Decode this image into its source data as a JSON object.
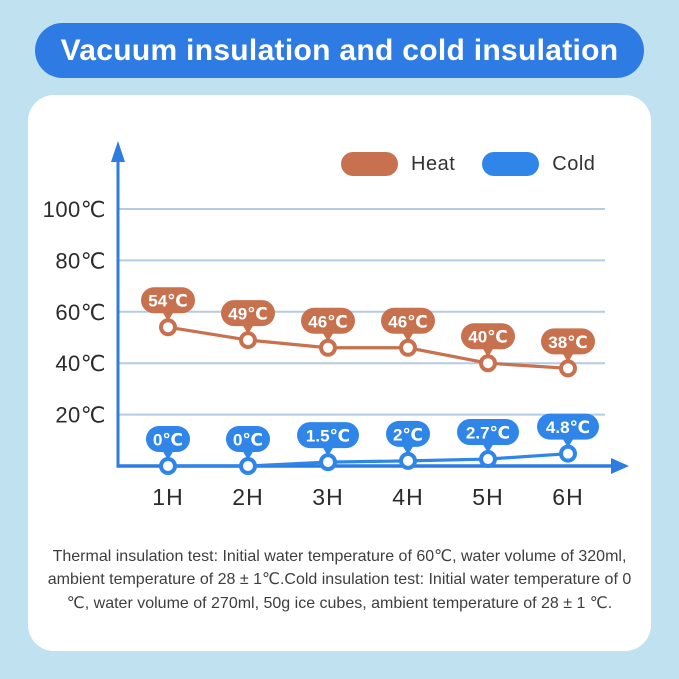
{
  "page": {
    "background": "#BFE1F0",
    "card_background": "#FFFFFF"
  },
  "header": {
    "title": "Vacuum insulation and cold insulation",
    "background": "#2E7BE3",
    "text_color": "#FFFFFF"
  },
  "legend": {
    "items": [
      {
        "label": "Heat",
        "color": "#C8714E"
      },
      {
        "label": "Cold",
        "color": "#2F86E8"
      }
    ]
  },
  "chart_data": {
    "type": "line",
    "categories": [
      "1H",
      "2H",
      "3H",
      "4H",
      "5H",
      "6H"
    ],
    "series": [
      {
        "name": "Heat",
        "color": "#C8714E",
        "values": [
          54,
          49,
          46,
          46,
          40,
          38
        ],
        "point_labels": [
          "54℃",
          "49℃",
          "46℃",
          "46℃",
          "40℃",
          "38℃"
        ]
      },
      {
        "name": "Cold",
        "color": "#2F86E8",
        "values": [
          0,
          0,
          1.5,
          2,
          2.7,
          4.8
        ],
        "point_labels": [
          "0℃",
          "0℃",
          "1.5℃",
          "2℃",
          "2.7℃",
          "4.8℃"
        ]
      }
    ],
    "yticks": [
      {
        "value": 20,
        "label": "20℃"
      },
      {
        "value": 40,
        "label": "40℃"
      },
      {
        "value": 60,
        "label": "60℃"
      },
      {
        "value": 80,
        "label": "80℃"
      },
      {
        "value": 100,
        "label": "100℃"
      }
    ],
    "ylim": [
      0,
      125
    ],
    "grid": true,
    "legend_position": "top",
    "xlabel": "",
    "ylabel": "",
    "axis_color": "#2E7CDF",
    "grid_color": "#B5CBE4",
    "tick_label_color": "#2B2B2B",
    "marker_fill": "#FFFFFF"
  },
  "footer": {
    "text": "Thermal insulation test: Initial water temperature of 60℃, water volume of 320ml, ambient temperature of 28 ± 1℃.Cold insulation test: Initial water temperature of 0 ℃, water volume of 270ml, 50g ice cubes, ambient temperature of 28 ± 1 ℃."
  }
}
